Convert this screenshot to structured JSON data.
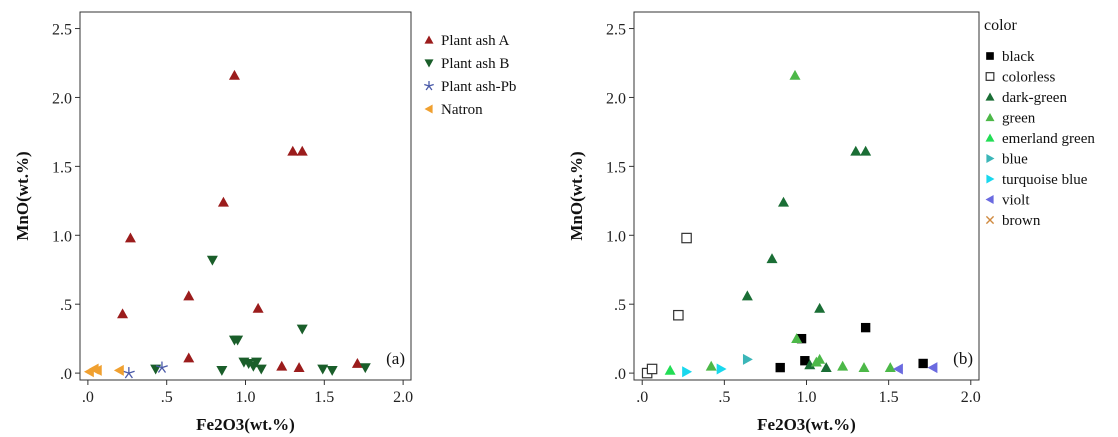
{
  "chart_data": [
    {
      "type": "scatter",
      "panel_label": "(a)",
      "xlabel": "Fe2O3(wt.%)",
      "ylabel": "MnO(wt.%)",
      "xlim": [
        -0.05,
        2.05
      ],
      "ylim": [
        -0.05,
        2.62
      ],
      "x_ticks": [
        0,
        0.5,
        1.0,
        1.5,
        2.0
      ],
      "x_tick_labels": [
        ".0",
        ".5",
        "1.0",
        "1.5",
        "2.0"
      ],
      "y_ticks": [
        0,
        0.5,
        1.0,
        1.5,
        2.0,
        2.5
      ],
      "y_tick_labels": [
        ".0",
        ".5",
        "1.0",
        "1.5",
        "2.0",
        "2.5"
      ],
      "grid": false,
      "legend_title": "",
      "legend_position": "outside-right",
      "series": [
        {
          "name": "Plant ash A",
          "marker": "triangle-up",
          "color": "#9b1c1c",
          "points": [
            [
              0.22,
              0.43
            ],
            [
              0.27,
              0.98
            ],
            [
              0.64,
              0.56
            ],
            [
              0.64,
              0.11
            ],
            [
              0.86,
              1.24
            ],
            [
              0.93,
              2.16
            ],
            [
              1.08,
              0.47
            ],
            [
              1.23,
              0.05
            ],
            [
              1.3,
              1.61
            ],
            [
              1.36,
              1.61
            ],
            [
              1.34,
              0.04
            ],
            [
              1.71,
              0.07
            ]
          ]
        },
        {
          "name": "Plant ash B",
          "marker": "triangle-down",
          "color": "#1a5e2a",
          "points": [
            [
              0.79,
              0.82
            ],
            [
              0.93,
              0.24
            ],
            [
              0.95,
              0.24
            ],
            [
              1.36,
              0.32
            ],
            [
              0.43,
              0.03
            ],
            [
              0.85,
              0.02
            ],
            [
              0.99,
              0.08
            ],
            [
              1.02,
              0.07
            ],
            [
              1.05,
              0.05
            ],
            [
              1.07,
              0.08
            ],
            [
              1.1,
              0.03
            ],
            [
              1.49,
              0.03
            ],
            [
              1.55,
              0.02
            ],
            [
              1.76,
              0.04
            ]
          ]
        },
        {
          "name": "Plant ash-Pb",
          "marker": "star",
          "color": "#4a5aa8",
          "points": [
            [
              0.26,
              0.0
            ],
            [
              0.47,
              0.04
            ]
          ]
        },
        {
          "name": "Natron",
          "marker": "triangle-left",
          "color": "#f0a030",
          "points": [
            [
              0.01,
              0.01
            ],
            [
              0.04,
              0.03
            ],
            [
              0.06,
              0.02
            ],
            [
              0.2,
              0.02
            ]
          ]
        }
      ]
    },
    {
      "type": "scatter",
      "panel_label": "(b)",
      "xlabel": "Fe2O3(wt.%)",
      "ylabel": "MnO(wt.%)",
      "xlim": [
        -0.05,
        2.05
      ],
      "ylim": [
        -0.05,
        2.62
      ],
      "x_ticks": [
        0,
        0.5,
        1.0,
        1.5,
        2.0
      ],
      "x_tick_labels": [
        ".0",
        ".5",
        "1.0",
        "1.5",
        "2.0"
      ],
      "y_ticks": [
        0,
        0.5,
        1.0,
        1.5,
        2.0,
        2.5
      ],
      "y_tick_labels": [
        ".0",
        ".5",
        "1.0",
        "1.5",
        "2.0",
        "2.5"
      ],
      "grid": false,
      "legend_title": "color",
      "legend_position": "outside-right",
      "series": [
        {
          "name": "black",
          "marker": "square-filled",
          "color": "#000000",
          "points": [
            [
              0.84,
              0.04
            ],
            [
              0.97,
              0.25
            ],
            [
              0.99,
              0.09
            ],
            [
              1.36,
              0.33
            ],
            [
              1.71,
              0.07
            ]
          ]
        },
        {
          "name": "colorless",
          "marker": "square-open",
          "color": "#333333",
          "points": [
            [
              0.03,
              0.0
            ],
            [
              0.06,
              0.03
            ],
            [
              0.22,
              0.42
            ],
            [
              0.27,
              0.98
            ]
          ]
        },
        {
          "name": "dark-green",
          "marker": "triangle-up",
          "color": "#1a6e35",
          "points": [
            [
              0.64,
              0.56
            ],
            [
              0.79,
              0.83
            ],
            [
              0.86,
              1.24
            ],
            [
              1.08,
              0.47
            ],
            [
              1.3,
              1.61
            ],
            [
              1.36,
              1.61
            ],
            [
              1.12,
              0.04
            ],
            [
              1.02,
              0.06
            ]
          ]
        },
        {
          "name": "green",
          "marker": "triangle-up",
          "color": "#4cb848",
          "points": [
            [
              0.93,
              2.16
            ],
            [
              0.94,
              0.25
            ],
            [
              1.06,
              0.08
            ],
            [
              1.08,
              0.1
            ],
            [
              1.22,
              0.05
            ],
            [
              1.35,
              0.04
            ],
            [
              1.51,
              0.04
            ],
            [
              0.42,
              0.05
            ]
          ]
        },
        {
          "name": "emerland green",
          "marker": "triangle-up",
          "color": "#22dd55",
          "points": [
            [
              0.17,
              0.02
            ]
          ]
        },
        {
          "name": "blue",
          "marker": "triangle-right",
          "color": "#3bb6b8",
          "points": [
            [
              0.64,
              0.1
            ]
          ]
        },
        {
          "name": "turquoise blue",
          "marker": "triangle-right",
          "color": "#19d8ee",
          "points": [
            [
              0.27,
              0.01
            ],
            [
              0.48,
              0.03
            ]
          ]
        },
        {
          "name": "violt",
          "marker": "triangle-left",
          "color": "#6a6ae0",
          "points": [
            [
              1.56,
              0.03
            ],
            [
              1.77,
              0.04
            ]
          ]
        },
        {
          "name": "brown",
          "marker": "cross",
          "color": "#d08a40",
          "points": []
        }
      ]
    }
  ]
}
